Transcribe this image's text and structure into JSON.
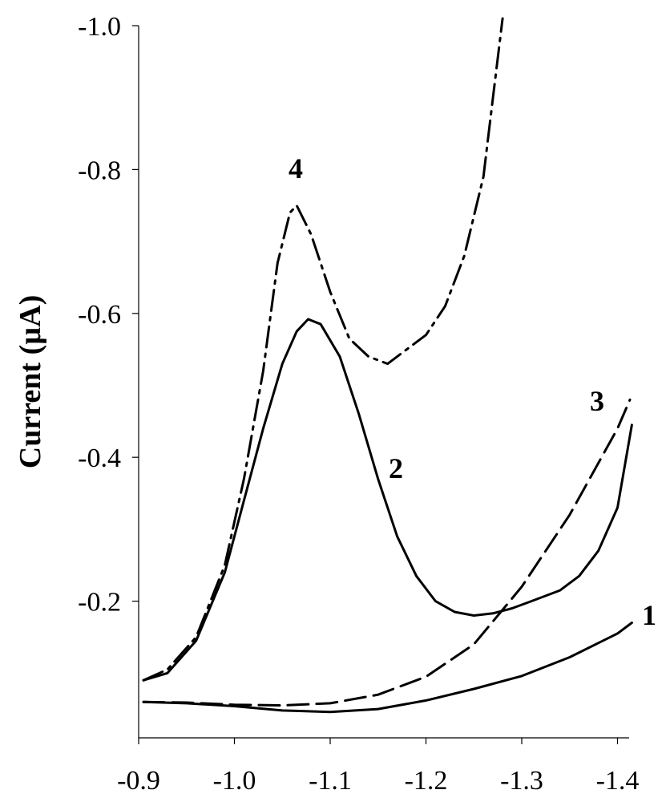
{
  "chart_data": {
    "type": "line",
    "title": "",
    "xlabel": "",
    "ylabel": "Current (µA)",
    "xlim": [
      -0.9,
      -1.42
    ],
    "ylim": [
      -0.01,
      -1.0
    ],
    "x_ticks": [
      -0.9,
      -1.0,
      -1.1,
      -1.2,
      -1.3,
      -1.4
    ],
    "x_tick_labels": [
      "-0.9",
      "-1.0",
      "-1.1",
      "-1.2",
      "-1.3",
      "-1.4"
    ],
    "y_ticks": [
      -0.2,
      -0.4,
      -0.6,
      -0.8,
      -1.0
    ],
    "y_tick_labels": [
      "-0.2",
      "-0.4",
      "-0.6",
      "-0.8",
      "-1.0"
    ],
    "grid": false,
    "legend": "none",
    "series": [
      {
        "name": "1",
        "style": "solid",
        "x": [
          -0.905,
          -0.95,
          -1.0,
          -1.05,
          -1.1,
          -1.15,
          -1.2,
          -1.25,
          -1.3,
          -1.35,
          -1.4,
          -1.415
        ],
        "y": [
          -0.06,
          -0.058,
          -0.054,
          -0.048,
          -0.046,
          -0.05,
          -0.062,
          -0.078,
          -0.096,
          -0.122,
          -0.155,
          -0.17
        ]
      },
      {
        "name": "2",
        "style": "solid",
        "x": [
          -0.905,
          -0.93,
          -0.96,
          -0.99,
          -1.01,
          -1.03,
          -1.05,
          -1.065,
          -1.077,
          -1.09,
          -1.11,
          -1.13,
          -1.15,
          -1.17,
          -1.19,
          -1.21,
          -1.23,
          -1.25,
          -1.27,
          -1.29,
          -1.31,
          -1.34,
          -1.36,
          -1.38,
          -1.4,
          -1.415
        ],
        "y": [
          -0.09,
          -0.1,
          -0.145,
          -0.24,
          -0.34,
          -0.44,
          -0.53,
          -0.575,
          -0.592,
          -0.585,
          -0.54,
          -0.46,
          -0.37,
          -0.29,
          -0.235,
          -0.2,
          -0.185,
          -0.18,
          -0.183,
          -0.19,
          -0.2,
          -0.215,
          -0.235,
          -0.27,
          -0.33,
          -0.445
        ]
      },
      {
        "name": "3",
        "style": "dashed",
        "x": [
          -0.905,
          -0.95,
          -1.0,
          -1.05,
          -1.1,
          -1.15,
          -1.2,
          -1.25,
          -1.3,
          -1.35,
          -1.4,
          -1.413
        ],
        "y": [
          -0.06,
          -0.059,
          -0.056,
          -0.055,
          -0.058,
          -0.07,
          -0.095,
          -0.14,
          -0.22,
          -0.32,
          -0.44,
          -0.48
        ]
      },
      {
        "name": "4",
        "style": "dash-dot",
        "x": [
          -0.905,
          -0.93,
          -0.96,
          -0.99,
          -1.01,
          -1.03,
          -1.045,
          -1.058,
          -1.065,
          -1.08,
          -1.1,
          -1.12,
          -1.14,
          -1.16,
          -1.18,
          -1.2,
          -1.22,
          -1.24,
          -1.26,
          -1.27,
          -1.28
        ],
        "y": [
          -0.09,
          -0.105,
          -0.15,
          -0.25,
          -0.37,
          -0.52,
          -0.67,
          -0.74,
          -0.75,
          -0.71,
          -0.63,
          -0.565,
          -0.54,
          -0.53,
          -0.55,
          -0.57,
          -0.61,
          -0.68,
          -0.79,
          -0.9,
          -1.01
        ]
      }
    ],
    "curve_labels": [
      {
        "text": "1"
      },
      {
        "text": "2"
      },
      {
        "text": "3"
      },
      {
        "text": "4"
      }
    ]
  }
}
